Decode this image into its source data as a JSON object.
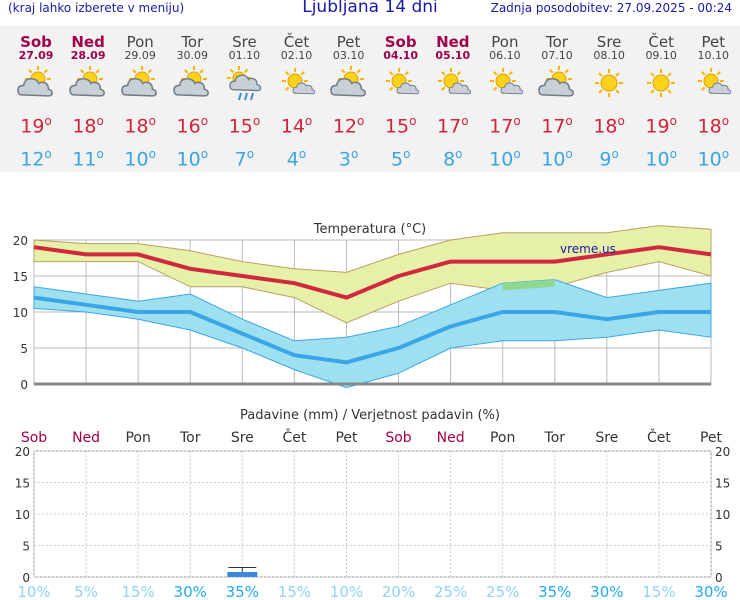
{
  "header": {
    "menu_hint": "(kraj lahko izberete v meniju)",
    "title": "Ljubljana 14 dni",
    "updated": "Zadnja posodobitev: 27.09.2025 - 00:24"
  },
  "days": [
    {
      "name": "Sob",
      "date": "27.09",
      "weekend": true,
      "icon": "partly-cloudy-icon",
      "max": "19",
      "min": "12"
    },
    {
      "name": "Ned",
      "date": "28.09",
      "weekend": true,
      "icon": "partly-cloudy-icon",
      "max": "18",
      "min": "11"
    },
    {
      "name": "Pon",
      "date": "29.09",
      "weekend": false,
      "icon": "partly-cloudy-icon",
      "max": "18",
      "min": "10"
    },
    {
      "name": "Tor",
      "date": "30.09",
      "weekend": false,
      "icon": "partly-cloudy-icon",
      "max": "16",
      "min": "10"
    },
    {
      "name": "Sre",
      "date": "01.10",
      "weekend": false,
      "icon": "sun-cloud-rain-icon",
      "max": "15",
      "min": "7"
    },
    {
      "name": "Čet",
      "date": "02.10",
      "weekend": false,
      "icon": "sun-small-cloud-icon",
      "max": "14",
      "min": "4"
    },
    {
      "name": "Pet",
      "date": "03.10",
      "weekend": false,
      "icon": "partly-cloudy-icon",
      "max": "12",
      "min": "3"
    },
    {
      "name": "Sob",
      "date": "04.10",
      "weekend": true,
      "icon": "sun-small-cloud-icon",
      "max": "15",
      "min": "5"
    },
    {
      "name": "Ned",
      "date": "05.10",
      "weekend": true,
      "icon": "sun-small-cloud-icon",
      "max": "17",
      "min": "8"
    },
    {
      "name": "Pon",
      "date": "06.10",
      "weekend": false,
      "icon": "sun-small-cloud-icon",
      "max": "17",
      "min": "10"
    },
    {
      "name": "Tor",
      "date": "07.10",
      "weekend": false,
      "icon": "partly-cloudy-icon",
      "max": "17",
      "min": "10"
    },
    {
      "name": "Sre",
      "date": "08.10",
      "weekend": false,
      "icon": "sun-icon",
      "max": "18",
      "min": "9"
    },
    {
      "name": "Čet",
      "date": "09.10",
      "weekend": false,
      "icon": "sun-icon",
      "max": "19",
      "min": "10"
    },
    {
      "name": "Pet",
      "date": "10.10",
      "weekend": false,
      "icon": "sun-small-cloud-icon",
      "max": "18",
      "min": "10"
    }
  ],
  "colors": {
    "max_line": "#d0283c",
    "min_line": "#3aa6e8",
    "max_band": "#e6f0a8",
    "min_band": "#9fe0f0",
    "overlap": "#8fd88f",
    "weekend": "#a0004a",
    "precip_bar": "#3a8ad8",
    "prob_text": "#33b3f0"
  },
  "chart_data": [
    {
      "type": "line",
      "title": "Temperatura",
      "unit": "(°C)",
      "title_suffix": "Temperatura (°C)",
      "watermark": "vreme.us",
      "ylim": [
        0,
        20
      ],
      "yticks": [
        "0",
        "5",
        "10",
        "15",
        "20"
      ],
      "categories": [
        "Sob",
        "Ned",
        "Pon",
        "Tor",
        "Sre",
        "Čet",
        "Pet",
        "Sob",
        "Ned",
        "Pon",
        "Tor",
        "Sre",
        "Čet",
        "Pet"
      ],
      "series": [
        {
          "name": "max",
          "values": [
            19,
            18,
            18,
            16,
            15,
            14,
            12,
            15,
            17,
            17,
            17,
            18,
            19,
            18
          ],
          "band_high": [
            20,
            19.5,
            19.5,
            18.5,
            17,
            16,
            15.5,
            18,
            20,
            21,
            21,
            21,
            22,
            21.5
          ],
          "band_low": [
            17,
            17,
            17,
            13.5,
            13.5,
            12,
            8.5,
            11.5,
            14,
            13,
            13.5,
            15.5,
            17,
            15
          ]
        },
        {
          "name": "min",
          "values": [
            12,
            11,
            10,
            10,
            7,
            4,
            3,
            5,
            8,
            10,
            10,
            9,
            10,
            10
          ],
          "band_high": [
            13.5,
            12.5,
            11.5,
            12.5,
            9,
            6,
            6.5,
            8,
            11,
            14,
            14.5,
            12,
            13,
            14
          ],
          "band_low": [
            10.5,
            10,
            9,
            7.5,
            5,
            2,
            -0.5,
            1.5,
            5,
            6,
            6,
            6.5,
            7.5,
            6.5
          ]
        }
      ]
    },
    {
      "type": "bar",
      "title": "Padavine (mm) / Verjetnost padavin (%)",
      "ylim": [
        0,
        20
      ],
      "yticks": [
        "0",
        "5",
        "10",
        "15",
        "20"
      ],
      "categories": [
        "Sob",
        "Ned",
        "Pon",
        "Tor",
        "Sre",
        "Čet",
        "Pet",
        "Sob",
        "Ned",
        "Pon",
        "Tor",
        "Sre",
        "Čet",
        "Pet"
      ],
      "values": [
        0,
        0,
        0,
        0,
        0.8,
        0,
        0,
        0,
        0,
        0,
        0,
        0,
        0,
        0
      ],
      "error_high": [
        0,
        0,
        0,
        0,
        1.5,
        0,
        0,
        0,
        0,
        0,
        0,
        0,
        0,
        0
      ],
      "probability": [
        "10%",
        "5%",
        "15%",
        "30%",
        "35%",
        "15%",
        "10%",
        "20%",
        "25%",
        "25%",
        "35%",
        "30%",
        "15%",
        "30%"
      ],
      "probability_values": [
        10,
        5,
        15,
        30,
        35,
        15,
        10,
        20,
        25,
        25,
        35,
        30,
        15,
        30
      ]
    }
  ]
}
